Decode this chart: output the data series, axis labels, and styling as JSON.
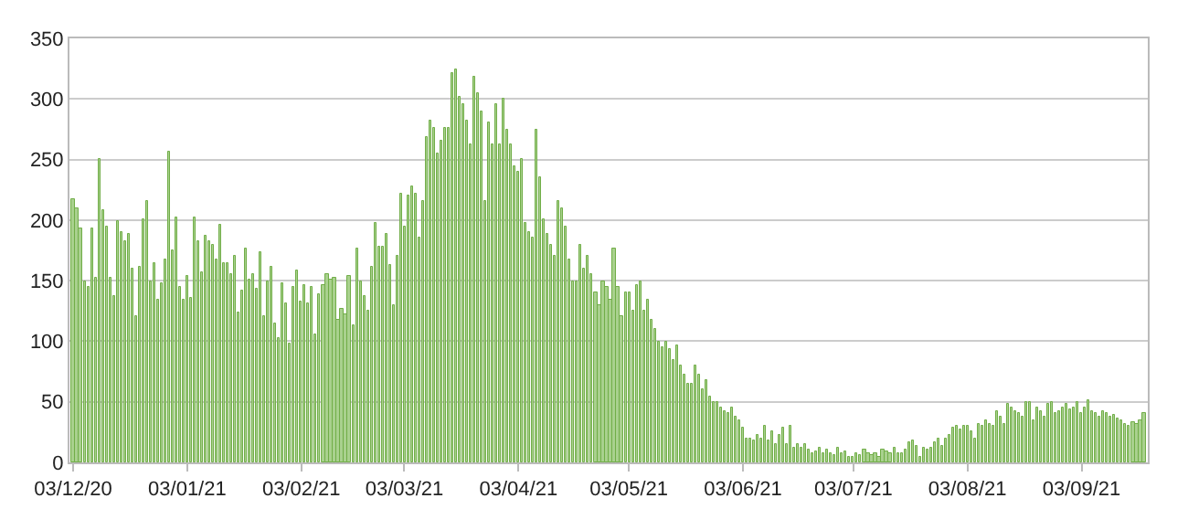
{
  "chart_data": {
    "type": "bar",
    "x": [
      "2020-12-03",
      "2020-12-04",
      "2020-12-05",
      "2020-12-06",
      "2020-12-07",
      "2020-12-08",
      "2020-12-09",
      "2020-12-10",
      "2020-12-11",
      "2020-12-12",
      "2020-12-13",
      "2020-12-14",
      "2020-12-15",
      "2020-12-16",
      "2020-12-17",
      "2020-12-18",
      "2020-12-19",
      "2020-12-20",
      "2020-12-21",
      "2020-12-22",
      "2020-12-23",
      "2020-12-24",
      "2020-12-25",
      "2020-12-26",
      "2020-12-27",
      "2020-12-28",
      "2020-12-29",
      "2020-12-30",
      "2020-12-31",
      "2021-01-01",
      "2021-01-02",
      "2021-01-03",
      "2021-01-04",
      "2021-01-05",
      "2021-01-06",
      "2021-01-07",
      "2021-01-08",
      "2021-01-09",
      "2021-01-10",
      "2021-01-11",
      "2021-01-12",
      "2021-01-13",
      "2021-01-14",
      "2021-01-15",
      "2021-01-16",
      "2021-01-17",
      "2021-01-18",
      "2021-01-19",
      "2021-01-20",
      "2021-01-21",
      "2021-01-22",
      "2021-01-23",
      "2021-01-24",
      "2021-01-25",
      "2021-01-26",
      "2021-01-27",
      "2021-01-28",
      "2021-01-29",
      "2021-01-30",
      "2021-01-31",
      "2021-02-01",
      "2021-02-02",
      "2021-02-03",
      "2021-02-04",
      "2021-02-05",
      "2021-02-06",
      "2021-02-07",
      "2021-02-08",
      "2021-02-09",
      "2021-02-10",
      "2021-02-11",
      "2021-02-12",
      "2021-02-13",
      "2021-02-14",
      "2021-02-15",
      "2021-02-16",
      "2021-02-17",
      "2021-02-18",
      "2021-02-19",
      "2021-02-20",
      "2021-02-21",
      "2021-02-22",
      "2021-02-23",
      "2021-02-24",
      "2021-02-25",
      "2021-02-26",
      "2021-02-27",
      "2021-02-28",
      "2021-03-01",
      "2021-03-02",
      "2021-03-03",
      "2021-03-04",
      "2021-03-05",
      "2021-03-06",
      "2021-03-07",
      "2021-03-08",
      "2021-03-09",
      "2021-03-10",
      "2021-03-11",
      "2021-03-12",
      "2021-03-13",
      "2021-03-14",
      "2021-03-15",
      "2021-03-16",
      "2021-03-17",
      "2021-03-18",
      "2021-03-19",
      "2021-03-20",
      "2021-03-21",
      "2021-03-22",
      "2021-03-23",
      "2021-03-24",
      "2021-03-25",
      "2021-03-26",
      "2021-03-27",
      "2021-03-28",
      "2021-03-29",
      "2021-03-30",
      "2021-03-31",
      "2021-04-01",
      "2021-04-02",
      "2021-04-03",
      "2021-04-04",
      "2021-04-05",
      "2021-04-06",
      "2021-04-07",
      "2021-04-08",
      "2021-04-09",
      "2021-04-10",
      "2021-04-11",
      "2021-04-12",
      "2021-04-13",
      "2021-04-14",
      "2021-04-15",
      "2021-04-16",
      "2021-04-17",
      "2021-04-18",
      "2021-04-19",
      "2021-04-20",
      "2021-04-21",
      "2021-04-22",
      "2021-04-23",
      "2021-04-24",
      "2021-04-25",
      "2021-04-26",
      "2021-04-27",
      "2021-04-28",
      "2021-04-29",
      "2021-04-30",
      "2021-05-01",
      "2021-05-02",
      "2021-05-03",
      "2021-05-04",
      "2021-05-05",
      "2021-05-06",
      "2021-05-07",
      "2021-05-08",
      "2021-05-09",
      "2021-05-10",
      "2021-05-11",
      "2021-05-12",
      "2021-05-13",
      "2021-05-14",
      "2021-05-15",
      "2021-05-16",
      "2021-05-17",
      "2021-05-18",
      "2021-05-19",
      "2021-05-20",
      "2021-05-21",
      "2021-05-22",
      "2021-05-23",
      "2021-05-24",
      "2021-05-25",
      "2021-05-26",
      "2021-05-27",
      "2021-05-28",
      "2021-05-29",
      "2021-05-30",
      "2021-05-31",
      "2021-06-01",
      "2021-06-02",
      "2021-06-03",
      "2021-06-04",
      "2021-06-05",
      "2021-06-06",
      "2021-06-07",
      "2021-06-08",
      "2021-06-09",
      "2021-06-10",
      "2021-06-11",
      "2021-06-12",
      "2021-06-13",
      "2021-06-14",
      "2021-06-15",
      "2021-06-16",
      "2021-06-17",
      "2021-06-18",
      "2021-06-19",
      "2021-06-20",
      "2021-06-21",
      "2021-06-22",
      "2021-06-23",
      "2021-06-24",
      "2021-06-25",
      "2021-06-26",
      "2021-06-27",
      "2021-06-28",
      "2021-06-29",
      "2021-06-30",
      "2021-07-01",
      "2021-07-02",
      "2021-07-03",
      "2021-07-04",
      "2021-07-05",
      "2021-07-06",
      "2021-07-07",
      "2021-07-08",
      "2021-07-09",
      "2021-07-10",
      "2021-07-11",
      "2021-07-12",
      "2021-07-13",
      "2021-07-14",
      "2021-07-15",
      "2021-07-16",
      "2021-07-17",
      "2021-07-18",
      "2021-07-19",
      "2021-07-20",
      "2021-07-21",
      "2021-07-22",
      "2021-07-23",
      "2021-07-24",
      "2021-07-25",
      "2021-07-26",
      "2021-07-27",
      "2021-07-28",
      "2021-07-29",
      "2021-07-30",
      "2021-07-31",
      "2021-08-01",
      "2021-08-02",
      "2021-08-03",
      "2021-08-04",
      "2021-08-05",
      "2021-08-06",
      "2021-08-07",
      "2021-08-08",
      "2021-08-09",
      "2021-08-10",
      "2021-08-11",
      "2021-08-12",
      "2021-08-13",
      "2021-08-14",
      "2021-08-15",
      "2021-08-16",
      "2021-08-17",
      "2021-08-18",
      "2021-08-19",
      "2021-08-20",
      "2021-08-21",
      "2021-08-22",
      "2021-08-23",
      "2021-08-24",
      "2021-08-25",
      "2021-08-26",
      "2021-08-27",
      "2021-08-28",
      "2021-08-29",
      "2021-08-30",
      "2021-08-31",
      "2021-09-01",
      "2021-09-02",
      "2021-09-03",
      "2021-09-04",
      "2021-09-05",
      "2021-09-06",
      "2021-09-07",
      "2021-09-08",
      "2021-09-09",
      "2021-09-10",
      "2021-09-11",
      "2021-09-12",
      "2021-09-13",
      "2021-09-14",
      "2021-09-15",
      "2021-09-16",
      "2021-09-17",
      "2021-09-18",
      "2021-09-19",
      "2021-09-20"
    ],
    "values": [
      217,
      210,
      193,
      150,
      145,
      193,
      152,
      251,
      208,
      195,
      152,
      138,
      199,
      190,
      183,
      188,
      160,
      121,
      161,
      201,
      216,
      150,
      165,
      135,
      148,
      167,
      256,
      175,
      202,
      145,
      135,
      154,
      136,
      202,
      183,
      157,
      187,
      182,
      180,
      168,
      196,
      165,
      164,
      156,
      170,
      124,
      142,
      176,
      151,
      155,
      144,
      174,
      120,
      150,
      162,
      115,
      102,
      148,
      132,
      98,
      145,
      158,
      133,
      147,
      132,
      145,
      105,
      139,
      146,
      155,
      151,
      153,
      118,
      126,
      122,
      154,
      113,
      177,
      150,
      137,
      125,
      162,
      197,
      178,
      178,
      188,
      163,
      130,
      171,
      222,
      195,
      221,
      228,
      222,
      186,
      215,
      268,
      282,
      276,
      255,
      265,
      276,
      276,
      322,
      325,
      301,
      295,
      282,
      262,
      318,
      305,
      290,
      215,
      280,
      263,
      296,
      262,
      300,
      275,
      263,
      244,
      240,
      250,
      198,
      190,
      185,
      275,
      235,
      200,
      188,
      180,
      170,
      215,
      210,
      195,
      168,
      150,
      150,
      180,
      160,
      170,
      155,
      140,
      130,
      150,
      145,
      135,
      176,
      145,
      120,
      140,
      140,
      125,
      146,
      150,
      125,
      135,
      118,
      110,
      100,
      95,
      100,
      93,
      85,
      97,
      80,
      73,
      65,
      65,
      80,
      72,
      60,
      68,
      55,
      50,
      50,
      45,
      42,
      40,
      45,
      38,
      35,
      28,
      20,
      20,
      18,
      22,
      20,
      30,
      18,
      25,
      15,
      22,
      28,
      15,
      30,
      12,
      15,
      12,
      15,
      10,
      8,
      9,
      12,
      8,
      10,
      7,
      6,
      12,
      8,
      9,
      5,
      4,
      8,
      6,
      10,
      8,
      6,
      7,
      4,
      10,
      9,
      7,
      12,
      8,
      8,
      10,
      16,
      18,
      13,
      5,
      12,
      10,
      12,
      17,
      20,
      13,
      20,
      22,
      28,
      30,
      27,
      30,
      30,
      25,
      20,
      32,
      30,
      35,
      32,
      30,
      42,
      38,
      32,
      48,
      45,
      42,
      40,
      38,
      50,
      50,
      35,
      45,
      42,
      38,
      48,
      50,
      40,
      42,
      45,
      48,
      44,
      46,
      50,
      40,
      46,
      52,
      42,
      40,
      38,
      42,
      40,
      38,
      39,
      36,
      35,
      32,
      30,
      33,
      32,
      35,
      40
    ],
    "color": "#a9d18e",
    "xlim": [
      "2020-12-02",
      "2021-09-21"
    ],
    "xticks": [
      {
        "value": "2020-12-03",
        "label": "03/12/20"
      },
      {
        "value": "2021-01-03",
        "label": "03/01/21"
      },
      {
        "value": "2021-02-03",
        "label": "03/02/21"
      },
      {
        "value": "2021-03-03",
        "label": "03/03/21"
      },
      {
        "value": "2021-04-03",
        "label": "03/04/21"
      },
      {
        "value": "2021-05-03",
        "label": "03/05/21"
      },
      {
        "value": "2021-06-03",
        "label": "03/06/21"
      },
      {
        "value": "2021-07-03",
        "label": "03/07/21"
      },
      {
        "value": "2021-08-03",
        "label": "03/08/21"
      },
      {
        "value": "2021-09-03",
        "label": "03/09/21"
      }
    ],
    "ylim": [
      0,
      350
    ],
    "yticks": [
      0,
      50,
      100,
      150,
      200,
      250,
      300,
      350
    ],
    "grid": "y"
  }
}
